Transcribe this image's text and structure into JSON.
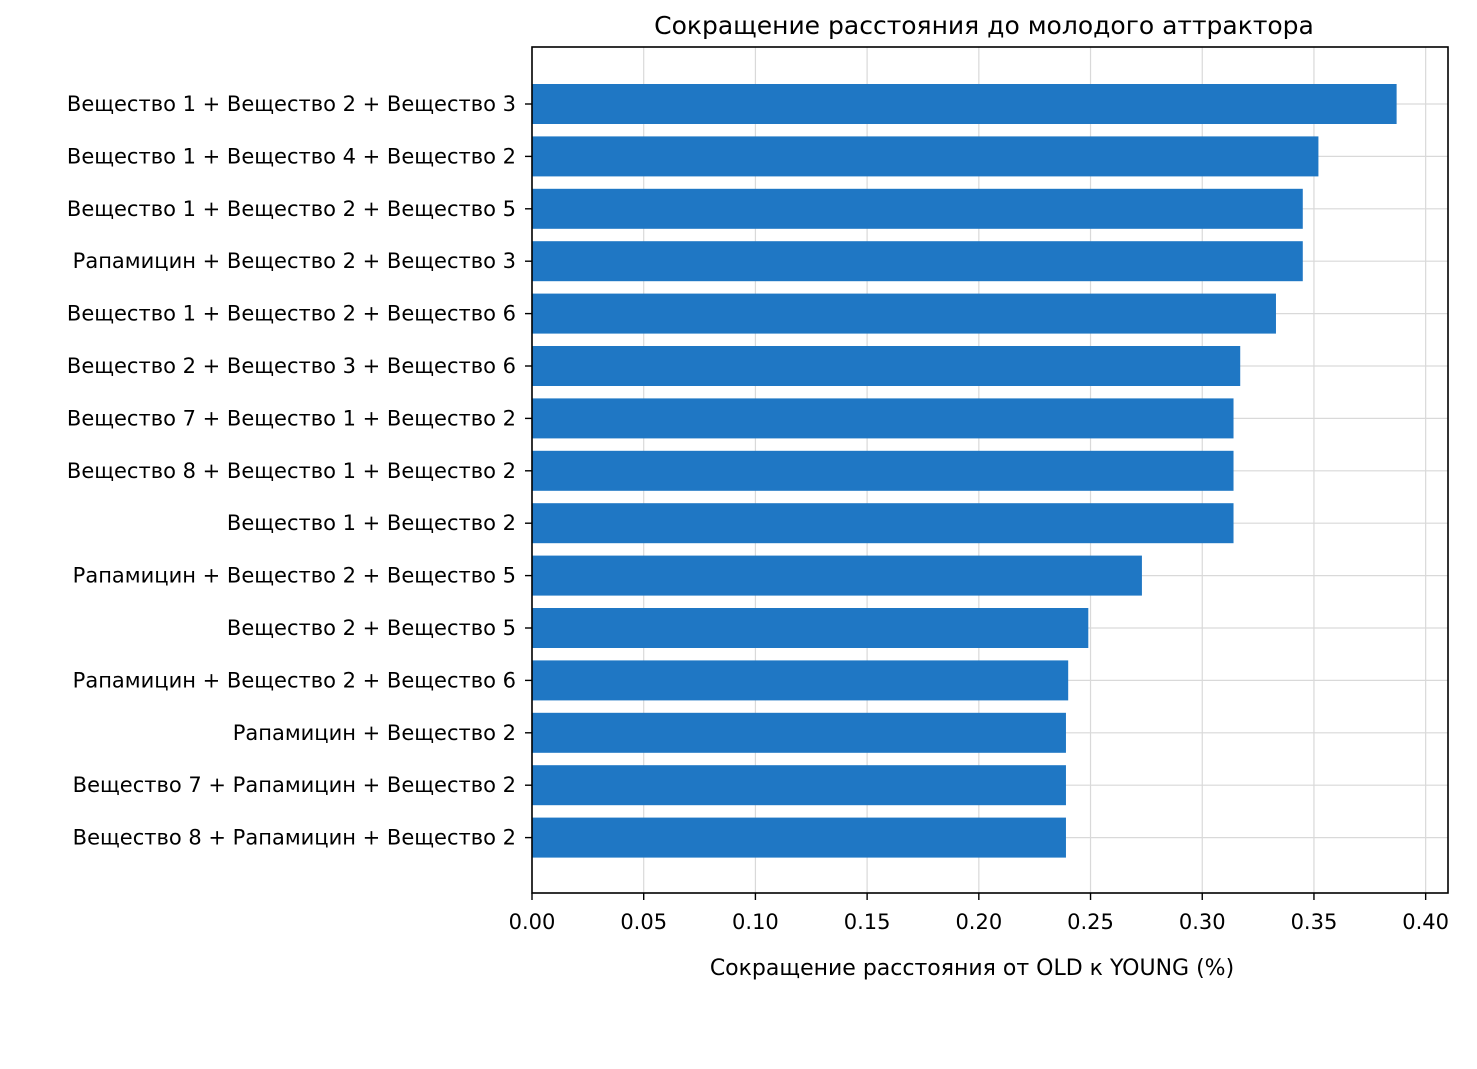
{
  "chart_data": {
    "type": "bar",
    "orientation": "horizontal",
    "title": "Сокращение расстояния до молодого аттрактора",
    "xlabel": "Сокращение расстояния от OLD к YOUNG (%)",
    "ylabel": "",
    "xlim": [
      0,
      0.41
    ],
    "xticks": [
      0.0,
      0.05,
      0.1,
      0.15,
      0.2,
      0.25,
      0.3,
      0.35,
      0.4
    ],
    "xtick_labels": [
      "0.00",
      "0.05",
      "0.10",
      "0.15",
      "0.20",
      "0.25",
      "0.30",
      "0.35",
      "0.40"
    ],
    "grid": true,
    "bar_color": "#1f77c4",
    "categories": [
      "Вещество 1 + Вещество 2 + Вещество 3",
      "Вещество 1 + Вещество 4 + Вещество 2",
      "Вещество 1 + Вещество 2 + Вещество 5",
      "Рапамицин + Вещество 2 + Вещество 3",
      "Вещество 1 + Вещество 2 + Вещество 6",
      "Вещество 2 + Вещество 3 + Вещество 6",
      "Вещество 7 + Вещество 1 + Вещество 2",
      "Вещество 8 + Вещество 1 + Вещество 2",
      "Вещество 1 + Вещество 2",
      "Рапамицин + Вещество 2 + Вещество 5",
      "Вещество 2 + Вещество 5",
      "Рапамицин + Вещество 2 + Вещество 6",
      "Рапамицин + Вещество 2",
      "Вещество 7 + Рапамицин + Вещество 2",
      "Вещество 8 + Рапамицин + Вещество 2"
    ],
    "values": [
      0.387,
      0.352,
      0.345,
      0.345,
      0.333,
      0.317,
      0.314,
      0.314,
      0.314,
      0.273,
      0.249,
      0.24,
      0.239,
      0.239,
      0.239
    ]
  }
}
